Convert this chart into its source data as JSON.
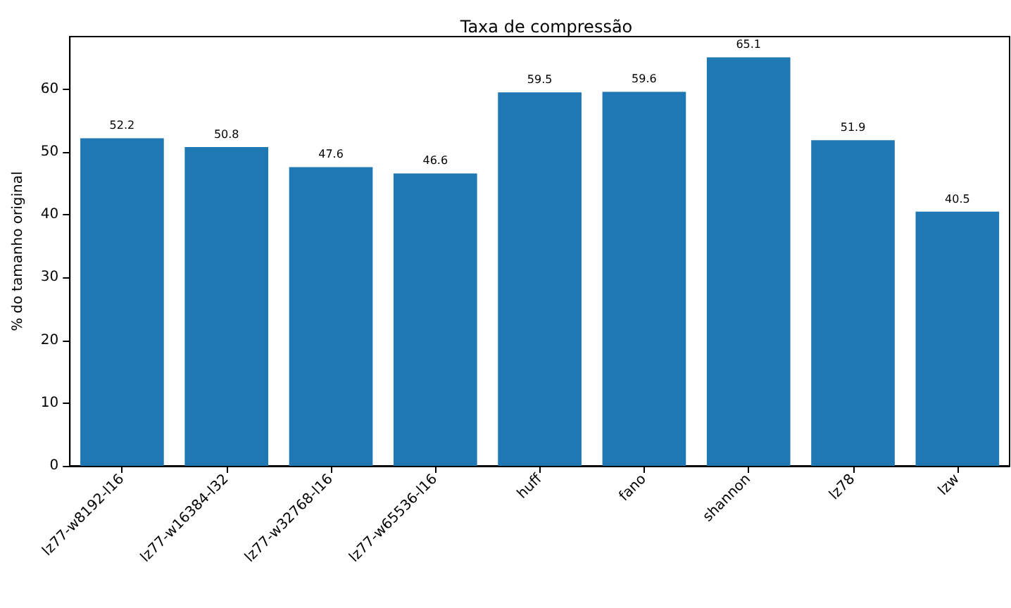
{
  "chart_data": {
    "type": "bar",
    "title": "Taxa de compressão",
    "ylabel": "% do tamanho original",
    "categories": [
      "lz77-w8192-l16",
      "lz77-w16384-l32",
      "lz77-w32768-l16",
      "lz77-w65536-l16",
      "huff",
      "fano",
      "shannon",
      "lz78",
      "lzw"
    ],
    "values": [
      52.2,
      50.8,
      47.6,
      46.6,
      59.5,
      59.6,
      65.1,
      51.9,
      40.5
    ],
    "color": "#1f77b4",
    "ylim": [
      0,
      68.4
    ],
    "yticks": [
      0,
      10,
      20,
      30,
      40,
      50,
      60
    ],
    "grid": false,
    "data_labels": true
  }
}
